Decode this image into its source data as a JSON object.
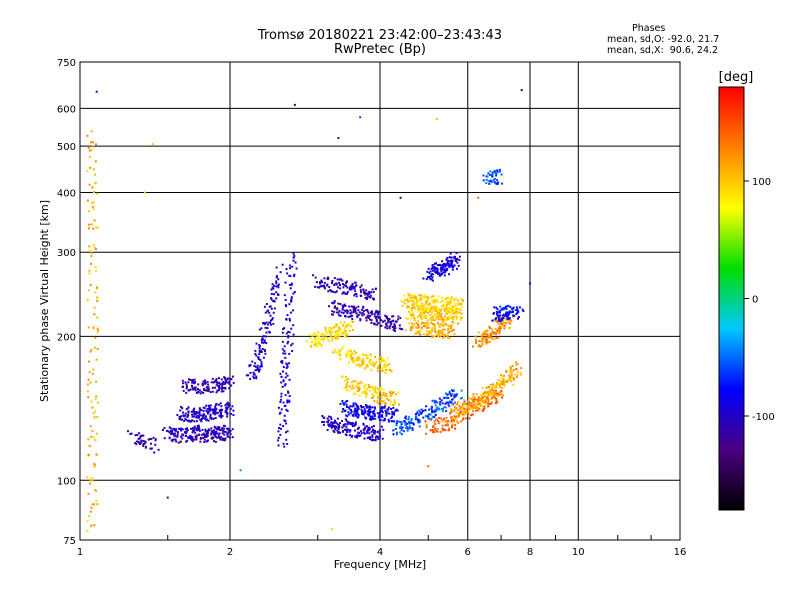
{
  "chart_data": {
    "type": "scatter",
    "title": "Tromsø 20180221 23:42:00–23:43:43",
    "subtitle": "RwPretec (Bp)",
    "xlabel": "Frequency [MHz]",
    "ylabel": "Stationary phase Virtual Height [km]",
    "x_scale": "log",
    "y_scale": "log",
    "xlim": [
      1,
      16
    ],
    "ylim": [
      75,
      750
    ],
    "x_ticks": [
      1,
      2,
      4,
      6,
      8,
      10,
      16
    ],
    "x_tick_labels": [
      "1",
      "2",
      "4",
      "6",
      "8",
      "10",
      "16"
    ],
    "y_ticks": [
      75,
      100,
      200,
      300,
      400,
      500,
      600,
      750
    ],
    "y_tick_labels": [
      "75",
      "100",
      "200",
      "300",
      "400",
      "500",
      "600",
      "750"
    ],
    "grid": true,
    "colorbar": {
      "label": "[deg]",
      "range": [
        -180,
        180
      ],
      "ticks": [
        -100,
        0,
        100
      ],
      "tick_labels": [
        "-100",
        "0",
        "100"
      ],
      "colors": [
        "#000000",
        "#4b0082",
        "#0000ff",
        "#00c8ff",
        "#00dd00",
        "#ffff00",
        "#ff8000",
        "#ff0000"
      ]
    },
    "stats": {
      "header": "Phases",
      "line_o": "mean, sd,O: -92.0, 21.7",
      "line_x": "mean, sd,X:  90.6, 24.2"
    },
    "traces": [
      {
        "x": [
          1.28,
          1.42
        ],
        "y": [
          123,
          118
        ],
        "phase": -110
      },
      {
        "x": [
          1.5,
          1.6,
          1.7,
          1.8,
          1.9,
          2.0
        ],
        "y": [
          125,
          124,
          126,
          124,
          125,
          126
        ],
        "phase": -105
      },
      {
        "x": [
          1.6,
          1.7,
          1.8,
          1.9,
          2.0
        ],
        "y": [
          138,
          137,
          138,
          140,
          141
        ],
        "phase": -100
      },
      {
        "x": [
          1.62,
          1.75,
          1.9,
          2.0
        ],
        "y": [
          158,
          157,
          158,
          160
        ],
        "phase": -110
      },
      {
        "x": [
          2.2,
          2.3,
          2.4,
          2.5
        ],
        "y": [
          165,
          185,
          220,
          280
        ],
        "phase": -100
      },
      {
        "x": [
          2.55,
          2.58,
          2.62,
          2.66
        ],
        "y": [
          120,
          160,
          210,
          300
        ],
        "phase": -95
      },
      {
        "x": [
          3.1,
          3.3,
          3.5,
          3.8,
          4.0
        ],
        "y": [
          132,
          130,
          128,
          126,
          125
        ],
        "phase": -100
      },
      {
        "x": [
          3.4,
          3.6,
          3.8,
          4.0,
          4.3
        ],
        "y": [
          142,
          140,
          139,
          138,
          137
        ],
        "phase": -85
      },
      {
        "x": [
          4.3,
          4.6,
          5.0,
          5.4,
          5.8
        ],
        "y": [
          128,
          132,
          138,
          145,
          152
        ],
        "phase": -60
      },
      {
        "x": [
          5.0,
          5.5,
          6.0,
          6.5,
          7.0
        ],
        "y": [
          128,
          132,
          140,
          146,
          152
        ],
        "phase": 140
      },
      {
        "x": [
          5.6,
          6.0,
          6.4,
          6.8,
          7.2,
          7.6
        ],
        "y": [
          138,
          143,
          148,
          155,
          162,
          172
        ],
        "phase": 110
      },
      {
        "x": [
          3.2,
          3.5,
          3.8,
          4.1,
          4.4
        ],
        "y": [
          230,
          225,
          220,
          215,
          212
        ],
        "phase": -110
      },
      {
        "x": [
          4.6,
          4.9,
          5.2,
          5.5,
          5.8
        ],
        "y": [
          226,
          224,
          222,
          221,
          220
        ],
        "phase": 100
      },
      {
        "x": [
          4.6,
          5.0,
          5.3,
          5.6
        ],
        "y": [
          210,
          208,
          206,
          205
        ],
        "phase": 110
      },
      {
        "x": [
          4.5,
          4.8,
          5.1,
          5.5,
          5.8
        ],
        "y": [
          238,
          236,
          235,
          233,
          232
        ],
        "phase": 95
      },
      {
        "x": [
          3.3,
          3.6,
          3.9,
          4.2
        ],
        "y": [
          185,
          180,
          176,
          173
        ],
        "phase": 95
      },
      {
        "x": [
          2.9,
          3.1,
          3.3,
          3.5
        ],
        "y": [
          195,
          200,
          205,
          210
        ],
        "phase": 90
      },
      {
        "x": [
          3.0,
          3.3,
          3.6,
          3.9
        ],
        "y": [
          260,
          255,
          250,
          245
        ],
        "phase": -105
      },
      {
        "x": [
          5.0,
          5.3,
          5.5,
          5.7
        ],
        "y": [
          270,
          275,
          280,
          290
        ],
        "phase": -90
      },
      {
        "x": [
          3.4,
          3.7,
          4.0,
          4.3
        ],
        "y": [
          160,
          155,
          150,
          148
        ],
        "phase": 100
      },
      {
        "x": [
          6.3,
          6.6,
          6.9,
          7.3
        ],
        "y": [
          195,
          200,
          210,
          218
        ],
        "phase": 120
      },
      {
        "x": [
          6.8,
          7.2,
          7.6
        ],
        "y": [
          222,
          224,
          226
        ],
        "phase": -80
      },
      {
        "x": [
          6.6,
          6.9
        ],
        "y": [
          430,
          432
        ],
        "phase": -60
      },
      {
        "x": [
          1.06,
          1.06,
          1.06,
          1.06
        ],
        "y": [
          80,
          150,
          300,
          550
        ],
        "phase": 110
      }
    ],
    "outliers": [
      {
        "x": 1.08,
        "y": 650,
        "phase": -100
      },
      {
        "x": 2.7,
        "y": 610,
        "phase": -110
      },
      {
        "x": 7.7,
        "y": 655,
        "phase": -150
      },
      {
        "x": 3.3,
        "y": 520,
        "phase": -130
      },
      {
        "x": 3.65,
        "y": 575,
        "phase": -60
      },
      {
        "x": 1.4,
        "y": 505,
        "phase": 100
      },
      {
        "x": 5.2,
        "y": 570,
        "phase": 100
      },
      {
        "x": 1.35,
        "y": 400,
        "phase": 60
      },
      {
        "x": 4.4,
        "y": 390,
        "phase": -130
      },
      {
        "x": 6.3,
        "y": 390,
        "phase": 140
      },
      {
        "x": 2.1,
        "y": 105,
        "phase": -40
      },
      {
        "x": 1.5,
        "y": 92,
        "phase": -120
      },
      {
        "x": 3.2,
        "y": 79,
        "phase": 100
      },
      {
        "x": 5.0,
        "y": 107,
        "phase": 140
      },
      {
        "x": 8.0,
        "y": 258,
        "phase": -100
      }
    ]
  }
}
